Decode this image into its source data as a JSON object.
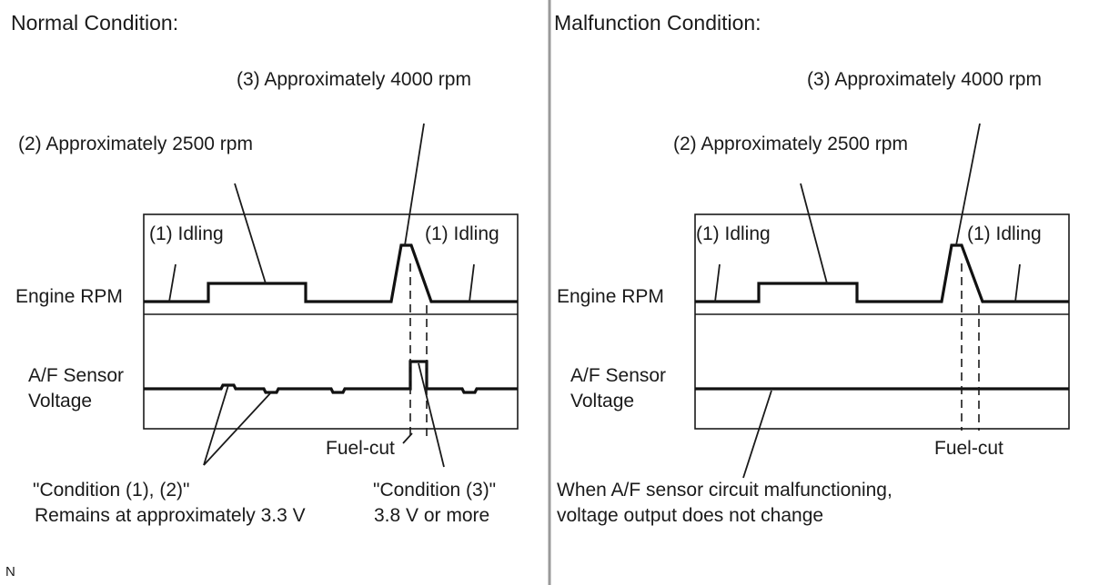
{
  "normal": {
    "title": "Normal Condition:",
    "label_idling_left": "(1) Idling",
    "label_idling_right": "(1) Idling",
    "label_2500": "(2) Approximately 2500 rpm",
    "label_4000": "(3) Approximately 4000 rpm",
    "row_engine_rpm": "Engine RPM",
    "row_af_line1": "A/F Sensor",
    "row_af_line2": "Voltage",
    "fuel_cut": "Fuel-cut",
    "note_cond12_line1": "\"Condition (1), (2)\"",
    "note_cond12_line2": "Remains at approximately 3.3 V",
    "note_cond3_line1": "\"Condition (3)\"",
    "note_cond3_line2": "3.8 V or more"
  },
  "malfunction": {
    "title": "Malfunction Condition:",
    "label_idling_left": "(1) Idling",
    "label_idling_right": "(1) Idling",
    "label_2500": "(2) Approximately 2500 rpm",
    "label_4000": "(3) Approximately 4000 rpm",
    "row_engine_rpm": "Engine RPM",
    "row_af_line1": "A/F Sensor",
    "row_af_line2": "Voltage",
    "fuel_cut": "Fuel-cut",
    "note_line1": "When A/F sensor circuit malfunctioning,",
    "note_line2": "voltage output does not change"
  },
  "corner_mark": "N"
}
